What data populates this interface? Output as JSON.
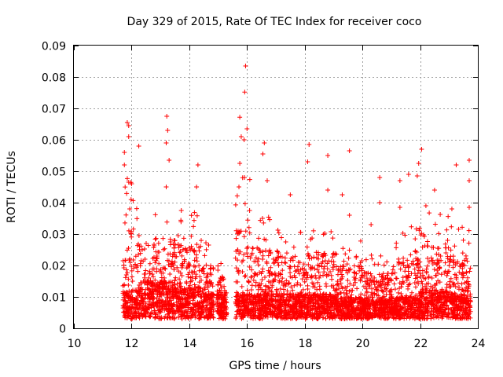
{
  "chart_data": {
    "type": "scatter",
    "title": "Day 329 of 2015, Rate Of TEC Index for receiver coco",
    "xlabel": "GPS time / hours",
    "ylabel": "ROTI / TECUs",
    "xlim": [
      10,
      24
    ],
    "ylim": [
      0,
      0.09
    ],
    "xticks": [
      "10",
      "12",
      "14",
      "16",
      "18",
      "20",
      "22",
      "24"
    ],
    "yticks": [
      "0",
      "0.01",
      "0.02",
      "0.03",
      "0.04",
      "0.05",
      "0.06",
      "0.07",
      "0.08",
      "0.09"
    ],
    "grid": true,
    "marker": "+",
    "color": "#ff0000",
    "density_envelope": [
      {
        "start": 11.7,
        "end": 12.3,
        "base": 0.009,
        "peak": 0.045
      },
      {
        "start": 12.3,
        "end": 13.5,
        "base": 0.012,
        "peak": 0.038
      },
      {
        "start": 13.5,
        "end": 14.3,
        "base": 0.01,
        "peak": 0.035
      },
      {
        "start": 14.3,
        "end": 14.85,
        "base": 0.008,
        "peak": 0.025
      },
      {
        "start": 14.95,
        "end": 15.3,
        "base": 0.008,
        "peak": 0.018
      },
      {
        "start": 15.6,
        "end": 16.1,
        "base": 0.008,
        "peak": 0.045
      },
      {
        "start": 16.1,
        "end": 17.0,
        "base": 0.008,
        "peak": 0.035
      },
      {
        "start": 17.0,
        "end": 18.0,
        "base": 0.008,
        "peak": 0.03
      },
      {
        "start": 18.0,
        "end": 19.0,
        "base": 0.008,
        "peak": 0.032
      },
      {
        "start": 19.0,
        "end": 20.0,
        "base": 0.007,
        "peak": 0.025
      },
      {
        "start": 20.0,
        "end": 21.0,
        "base": 0.006,
        "peak": 0.022
      },
      {
        "start": 21.0,
        "end": 22.0,
        "base": 0.007,
        "peak": 0.03
      },
      {
        "start": 22.0,
        "end": 23.0,
        "base": 0.009,
        "peak": 0.035
      },
      {
        "start": 23.0,
        "end": 23.75,
        "base": 0.008,
        "peak": 0.03
      }
    ],
    "notable_points": [
      {
        "x": 15.95,
        "y": 0.0835
      },
      {
        "x": 15.92,
        "y": 0.0752
      },
      {
        "x": 15.75,
        "y": 0.0672
      },
      {
        "x": 13.22,
        "y": 0.0675
      },
      {
        "x": 11.85,
        "y": 0.0655
      },
      {
        "x": 11.9,
        "y": 0.0645
      },
      {
        "x": 16.0,
        "y": 0.0635
      },
      {
        "x": 13.25,
        "y": 0.063
      },
      {
        "x": 11.9,
        "y": 0.061
      },
      {
        "x": 15.8,
        "y": 0.061
      },
      {
        "x": 15.9,
        "y": 0.06
      },
      {
        "x": 13.2,
        "y": 0.059
      },
      {
        "x": 16.6,
        "y": 0.059
      },
      {
        "x": 12.25,
        "y": 0.058
      },
      {
        "x": 18.15,
        "y": 0.0585
      },
      {
        "x": 22.05,
        "y": 0.057
      },
      {
        "x": 19.55,
        "y": 0.0565
      },
      {
        "x": 11.75,
        "y": 0.056
      },
      {
        "x": 16.55,
        "y": 0.0555
      },
      {
        "x": 18.8,
        "y": 0.055
      },
      {
        "x": 23.7,
        "y": 0.0535
      },
      {
        "x": 13.3,
        "y": 0.0535
      },
      {
        "x": 21.95,
        "y": 0.0525
      },
      {
        "x": 14.3,
        "y": 0.052
      },
      {
        "x": 23.25,
        "y": 0.052
      },
      {
        "x": 11.75,
        "y": 0.052
      },
      {
        "x": 15.75,
        "y": 0.0525
      },
      {
        "x": 18.1,
        "y": 0.053
      },
      {
        "x": 21.6,
        "y": 0.049
      },
      {
        "x": 21.9,
        "y": 0.0485
      },
      {
        "x": 20.6,
        "y": 0.048
      },
      {
        "x": 23.7,
        "y": 0.047
      },
      {
        "x": 16.7,
        "y": 0.047
      },
      {
        "x": 12.0,
        "y": 0.046
      },
      {
        "x": 13.2,
        "y": 0.045
      },
      {
        "x": 17.5,
        "y": 0.0425
      },
      {
        "x": 19.3,
        "y": 0.0425
      },
      {
        "x": 21.3,
        "y": 0.047
      },
      {
        "x": 22.5,
        "y": 0.044
      },
      {
        "x": 14.25,
        "y": 0.045
      },
      {
        "x": 18.8,
        "y": 0.044
      },
      {
        "x": 20.6,
        "y": 0.04
      },
      {
        "x": 22.2,
        "y": 0.039
      },
      {
        "x": 23.1,
        "y": 0.038
      },
      {
        "x": 19.55,
        "y": 0.036
      },
      {
        "x": 20.3,
        "y": 0.033
      },
      {
        "x": 23.7,
        "y": 0.0385
      },
      {
        "x": 21.3,
        "y": 0.0385
      }
    ]
  }
}
